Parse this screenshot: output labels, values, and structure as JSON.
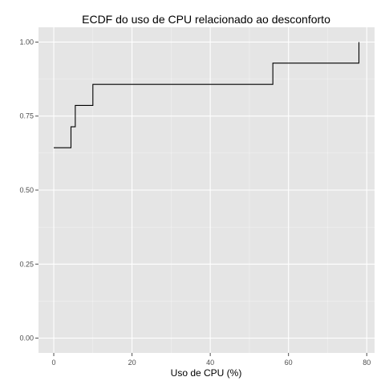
{
  "chart_data": {
    "type": "line",
    "step": true,
    "title": "ECDF do uso de CPU relacionado ao desconforto",
    "xlabel": "Uso de CPU (%)",
    "ylabel": "",
    "xlim": [
      -3.9,
      82
    ],
    "ylim": [
      -0.05,
      1.05
    ],
    "x_ticks": [
      0,
      20,
      40,
      60,
      80
    ],
    "x_tick_labels": [
      "0",
      "20",
      "40",
      "60",
      "80"
    ],
    "y_ticks": [
      0,
      0.25,
      0.5,
      0.75,
      1
    ],
    "y_tick_labels": [
      "0.00",
      "0.25",
      "0.50",
      "0.75",
      "1.00"
    ],
    "grid": true,
    "legend": "none",
    "colors": {
      "panel": "#e5e5e5",
      "grid": "#ffffff",
      "line": "#000000",
      "tick": "#4d4d4d"
    },
    "series": [
      {
        "x": [
          0,
          4.4,
          5.5,
          10,
          56,
          78
        ],
        "y": [
          0.643,
          0.714,
          0.786,
          0.857,
          0.929,
          1.0
        ]
      }
    ]
  }
}
